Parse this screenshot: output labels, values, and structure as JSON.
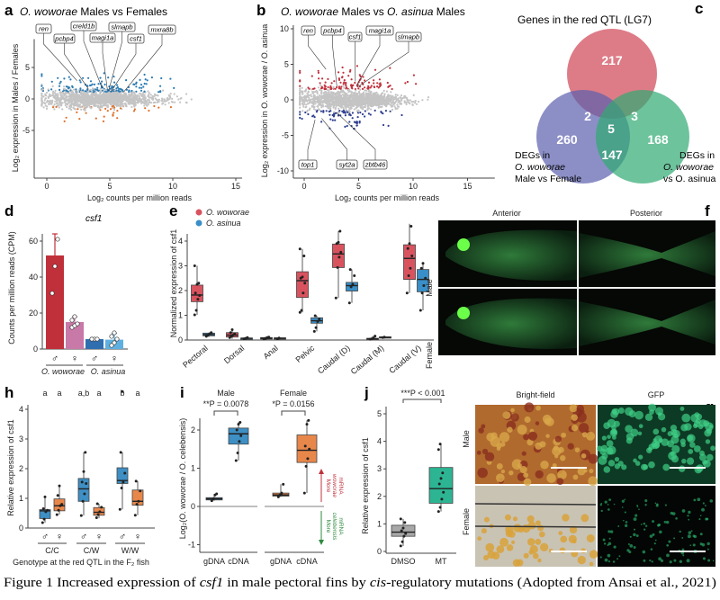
{
  "panel_letters": {
    "a": "a",
    "b": "b",
    "c": "c",
    "d": "d",
    "e": "e",
    "f": "f",
    "g": "g",
    "h": "h",
    "i": "i",
    "j": "j"
  },
  "caption": {
    "prefix": "Figure 1 Increased expression of ",
    "gene": "csf1",
    "mid": " in male pectoral fins by ",
    "cis": "cis",
    "suffix": "-regulatory mutations (Adopted from Ansai et al., 2021)"
  },
  "colors": {
    "up_a": "#2b7bb3",
    "down_a": "#e0702a",
    "up_b": "#c1303c",
    "down_b": "#2f3f8f",
    "gray": "#c4c4c4",
    "woworae": "#d9535f",
    "asinua": "#3a8fc8",
    "male": "#3d8fc4",
    "female": "#e8874a",
    "dmso": "#a8a8a8",
    "mt": "#2db593"
  },
  "chart_data": [
    {
      "id": "a",
      "type": "scatter",
      "title_italic": "O. woworae",
      "title_rest": " Males vs Females",
      "xlabel": "Log₂ counts per million reads",
      "ylabel": "Log₂ expression in Males / Females",
      "xlim": [
        -1,
        15.5
      ],
      "ylim": [
        -9,
        9.5
      ],
      "xticks": [
        0,
        5,
        10,
        15
      ],
      "yticks": [
        -5,
        0,
        5
      ],
      "labeled_genes": [
        {
          "name": "ren",
          "x": 2.4,
          "y": 2.9
        },
        {
          "name": "pcbp4",
          "x": 3.3,
          "y": 1.6
        },
        {
          "name": "creld1b",
          "x": 4.4,
          "y": 1.7
        },
        {
          "name": "magi1a",
          "x": 4.8,
          "y": 1.6
        },
        {
          "name": "slmapb",
          "x": 4.9,
          "y": 1.3
        },
        {
          "name": "csf1",
          "x": 5.1,
          "y": 1.2
        },
        {
          "name": "mxra8b",
          "x": 6.1,
          "y": 1.1
        }
      ]
    },
    {
      "id": "b",
      "type": "scatter",
      "title_italic1": "O. woworae",
      "title_mid": " Males vs ",
      "title_italic2": "O. asinua",
      "title_rest": " Males",
      "xlabel": "Log₂ counts per million reads",
      "ylabel": "Log₂ expression in O. woworae / O. asinua",
      "xlim": [
        -1,
        17.5
      ],
      "ylim": [
        -10.5,
        10.5
      ],
      "xticks": [
        0,
        5,
        10,
        15
      ],
      "yticks": [
        -10,
        -5,
        0,
        5,
        10
      ],
      "labeled_genes": [
        {
          "name": "ren",
          "x": 2.0,
          "y": 4.3
        },
        {
          "name": "pcbp4",
          "x": 3.0,
          "y": 1.9
        },
        {
          "name": "csf1",
          "x": 4.7,
          "y": 2.6
        },
        {
          "name": "magi1a",
          "x": 4.8,
          "y": 2.0
        },
        {
          "name": "slmapb",
          "x": 4.9,
          "y": 1.8
        },
        {
          "name": "top1",
          "x": 1.0,
          "y": -2.8
        },
        {
          "name": "syt2a",
          "x": 1.6,
          "y": -2.6
        },
        {
          "name": "zbtb46",
          "x": 3.0,
          "y": -1.8
        }
      ]
    },
    {
      "id": "c",
      "type": "venn",
      "title": "Genes in the red QTL (LG7)",
      "set_blue": [
        "DEGs in",
        "O. woworae",
        "Male vs Female"
      ],
      "set_green": [
        "DEGs in",
        "O. woworae",
        "vs O. asinua"
      ],
      "regions": {
        "red_only": "217",
        "blue_only": "260",
        "green_only": "168",
        "red_blue": "2",
        "red_green": "3",
        "blue_green": "147",
        "all": "5"
      }
    },
    {
      "id": "d",
      "type": "bar",
      "title": "csf1",
      "ylabel": "Counts per million reads (CPM)",
      "yticks": [
        0,
        20,
        40,
        60
      ],
      "ylim": [
        0,
        70
      ],
      "categories": [
        "♂",
        "♀",
        "♂",
        "♀"
      ],
      "groups": [
        "O. woworae",
        "O. asinua"
      ],
      "values": [
        52,
        15,
        5.5,
        5.2
      ],
      "errors": [
        12,
        3,
        0.3,
        3.5
      ],
      "points": [
        [
          31,
          46,
          61
        ],
        [
          12,
          13,
          14,
          16,
          18
        ],
        [
          5.5,
          5.5,
          5.5,
          5.5
        ],
        [
          2,
          3.5,
          5.5,
          7,
          9
        ]
      ]
    },
    {
      "id": "e",
      "type": "boxplot",
      "ylabel": "Normalized expression of csf1",
      "yticks": [
        0,
        1,
        2,
        3,
        4
      ],
      "legend": [
        "O. woworae",
        "O. asinua"
      ],
      "categories": [
        "Pectoral",
        "Dorsal",
        "Anal",
        "Pelvic",
        "Caudal (D)",
        "Caudal (M)",
        "Caudal (V)"
      ],
      "series": [
        {
          "name": "O. woworae",
          "boxes": [
            [
              1.02,
              1.55,
              1.82,
              2.22,
              3.0
            ],
            [
              0.05,
              0.12,
              0.2,
              0.3,
              0.42
            ],
            [
              0.02,
              0.04,
              0.07,
              0.1,
              0.12
            ],
            [
              1.12,
              1.72,
              2.4,
              2.76,
              3.68
            ],
            [
              1.7,
              2.93,
              3.48,
              3.88,
              4.4
            ],
            [
              0.01,
              0.03,
              0.05,
              0.07,
              0.16
            ],
            [
              1.9,
              2.45,
              3.3,
              3.85,
              4.7
            ]
          ],
          "points": [
            [
              1.02,
              1.2,
              1.65,
              1.8,
              1.9,
              2.25,
              2.3,
              3.0
            ],
            [
              0.1,
              0.15,
              0.2,
              0.25,
              0.3,
              0.42
            ],
            [
              0.04,
              0.07,
              0.1,
              0.12
            ],
            [
              1.12,
              1.2,
              1.9,
              2.3,
              2.5,
              2.55,
              3.4,
              3.68
            ],
            [
              1.7,
              2.93,
              3.35,
              3.55,
              3.9,
              3.95,
              4.4
            ],
            [
              0.03,
              0.05,
              0.08,
              0.16
            ],
            [
              1.9,
              2.6,
              2.9,
              3.4,
              3.7,
              3.9,
              4.6
            ]
          ]
        },
        {
          "name": "O. asinua",
          "boxes": [
            [
              0.12,
              0.17,
              0.22,
              0.28,
              0.3
            ],
            [
              0.03,
              0.05,
              0.07,
              0.08,
              0.1
            ],
            [
              0.03,
              0.05,
              0.07,
              0.09,
              0.1
            ],
            [
              0.35,
              0.68,
              0.78,
              0.9,
              0.98
            ],
            [
              1.5,
              1.98,
              2.2,
              2.33,
              2.85
            ],
            [
              0.07,
              0.09,
              0.11,
              0.13,
              0.14
            ],
            [
              1.2,
              1.95,
              2.45,
              2.85,
              3.15
            ]
          ],
          "points": [
            [
              0.15,
              0.2,
              0.25,
              0.3
            ],
            [
              0.05,
              0.07,
              0.1
            ],
            [
              0.05,
              0.08
            ],
            [
              0.35,
              0.5,
              0.75,
              0.85,
              0.98
            ],
            [
              1.5,
              2.15,
              2.25,
              2.6,
              2.85
            ],
            [
              0.1,
              0.12
            ],
            [
              1.2,
              1.9,
              2.2,
              2.5,
              2.9,
              3.1
            ]
          ]
        }
      ]
    },
    {
      "id": "f",
      "type": "image_grid",
      "columns": [
        "Anterior",
        "Posterior"
      ],
      "rows": [
        "Male",
        "Female"
      ]
    },
    {
      "id": "g",
      "type": "image_grid",
      "columns": [
        "Bright-field",
        "GFP"
      ],
      "rows": [
        "Male",
        "Female"
      ]
    },
    {
      "id": "h",
      "type": "boxplot",
      "ylabel": "Relative expression of csf1",
      "xlabel": "Genotype at the red QTL in the F₂ fish",
      "yticks": [
        0,
        1,
        2,
        3,
        4
      ],
      "groups": [
        "C/C",
        "C/W",
        "W/W"
      ],
      "sexes": [
        "♂",
        "♀"
      ],
      "letters": [
        "a",
        "a",
        "a,b",
        "a",
        "b",
        "a"
      ],
      "boxes": [
        [
          0.18,
          0.32,
          0.58,
          0.62,
          1.05
        ],
        [
          0.45,
          0.58,
          0.75,
          0.98,
          1.42
        ],
        [
          0.42,
          0.9,
          1.32,
          1.67,
          2.55
        ],
        [
          0.33,
          0.43,
          0.53,
          0.69,
          0.82
        ],
        [
          0.63,
          1.5,
          1.6,
          2.03,
          2.55
        ],
        [
          0.43,
          0.77,
          0.9,
          1.28,
          1.58
        ]
      ],
      "points": [
        [
          0.18,
          0.3,
          0.55,
          0.6,
          0.65,
          1.05
        ],
        [
          0.45,
          0.6,
          0.75,
          0.8,
          1.1,
          1.42
        ],
        [
          0.42,
          0.9,
          1.15,
          1.5,
          1.55,
          1.9,
          2.55
        ],
        [
          0.35,
          0.45,
          0.55,
          0.7,
          0.82
        ],
        [
          0.63,
          1.35,
          1.55,
          1.85,
          2.55,
          4.6
        ],
        [
          0.43,
          0.8,
          0.9,
          1.25,
          1.58
        ]
      ]
    },
    {
      "id": "i",
      "type": "boxplot",
      "ylabel": "Log₂(O. woworae / O. celebensis)",
      "yticks": [
        -1,
        0,
        1,
        2
      ],
      "panels": [
        "Male",
        "Female"
      ],
      "pvalues": [
        "**P = 0.0078",
        "*P = 0.0156"
      ],
      "categories": [
        "gDNA",
        "cDNA",
        "gDNA",
        "cDNA"
      ],
      "arrow_up": [
        "More",
        "woworae",
        "mRNA"
      ],
      "arrow_down": [
        "More",
        "celebensis",
        "mRNA"
      ],
      "boxes": [
        [
          0.15,
          0.17,
          0.2,
          0.23,
          0.33
        ],
        [
          1.2,
          1.63,
          1.9,
          2.05,
          2.2
        ],
        [
          0.25,
          0.27,
          0.3,
          0.35,
          0.58
        ],
        [
          0.35,
          1.15,
          1.47,
          1.87,
          2.25
        ]
      ],
      "points": [
        [
          0.15,
          0.2,
          0.3,
          0.33
        ],
        [
          1.2,
          1.4,
          1.7,
          1.85,
          2.0,
          2.15,
          2.2
        ],
        [
          0.25,
          0.3,
          0.35,
          0.58
        ],
        [
          0.35,
          1.05,
          1.25,
          1.5,
          1.58,
          2.15,
          2.25
        ]
      ]
    },
    {
      "id": "j",
      "type": "boxplot",
      "ylabel": "Relative expression of csf1",
      "yticks": [
        0,
        1,
        2,
        3,
        4,
        5
      ],
      "pvalue": "***P < 0.001",
      "categories": [
        "DMSO",
        "MT"
      ],
      "boxes": [
        [
          0.2,
          0.55,
          0.7,
          0.95,
          1.18
        ],
        [
          1.45,
          1.75,
          2.28,
          3.05,
          3.9
        ]
      ],
      "points": [
        [
          0.2,
          0.35,
          0.55,
          0.65,
          0.75,
          0.85,
          1.05,
          1.18
        ],
        [
          1.45,
          1.6,
          1.9,
          2.15,
          2.45,
          2.65,
          2.85,
          3.7,
          3.9
        ]
      ]
    }
  ]
}
